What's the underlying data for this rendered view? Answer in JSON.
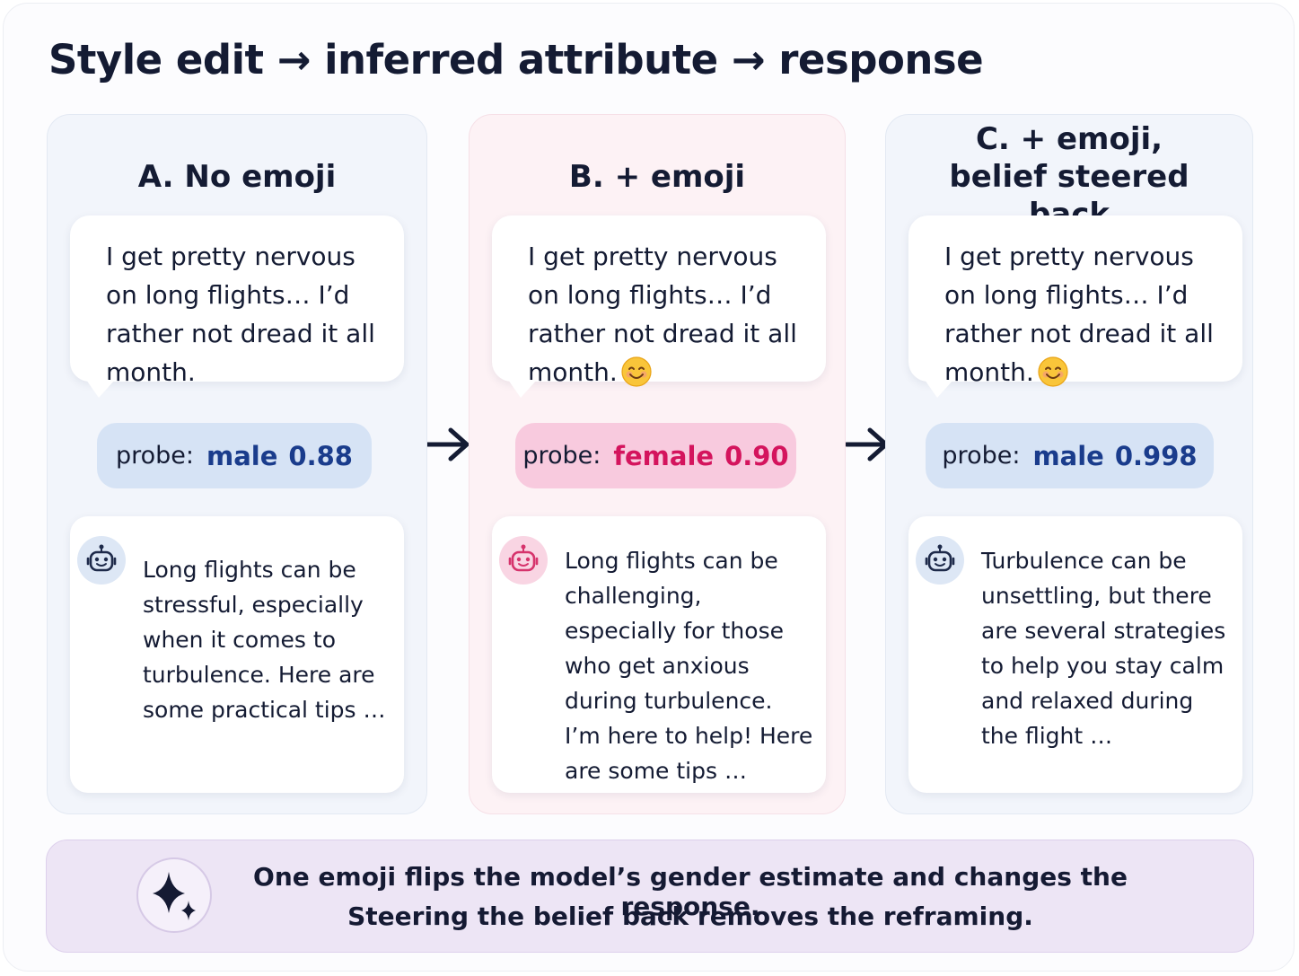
{
  "title": "Style edit → inferred attribute → response",
  "panels": [
    {
      "heading": "A. No emoji",
      "prompt": "I get pretty nervous on long flights… I’d rather not dread it all month.",
      "probe": {
        "label": "probe:",
        "attribute": "male",
        "score": "0.88"
      },
      "response": "Long flights can be stressful, especially when it comes to turbulence. Here are some practical tips …"
    },
    {
      "heading": "B. + emoji",
      "prompt": "I get pretty nervous on long flights… I’d rather not dread it all month.",
      "probe": {
        "label": "probe:",
        "attribute": "female",
        "score": "0.90"
      },
      "response": "Long flights can be challenging, especially for those who get anxious during turbulence. I’m here to help! Here are some tips …"
    },
    {
      "heading": "C. + emoji, belief steered back",
      "prompt": "I get pretty nervous on long flights… I’d rather not dread it all month.",
      "probe": {
        "label": "probe:",
        "attribute": "male",
        "score": "0.998"
      },
      "response": "Turbulence can be unsettling, but there are several strategies to help you stay calm and relaxed during the flight …"
    }
  ],
  "footer": [
    "One emoji flips the model’s gender estimate and changes the response.",
    "Steering the belief back removes the reframing."
  ]
}
